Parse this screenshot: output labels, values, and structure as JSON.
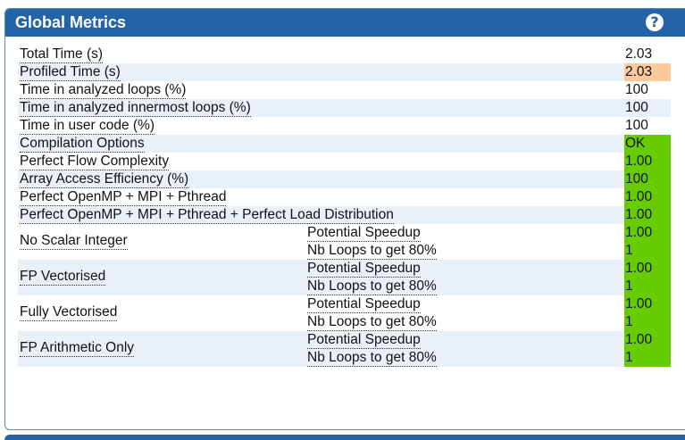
{
  "panel": {
    "title": "Global Metrics",
    "help_glyph": "?"
  },
  "colors": {
    "header": "#2364a8",
    "ok_green": "#66cc00",
    "warn_orange": "#fbc99c",
    "shade": "#e9f0f8"
  },
  "metrics": [
    {
      "label": "Total Time (s)",
      "value": "2.03"
    },
    {
      "label": "Profiled Time (s)",
      "value": "2.03"
    },
    {
      "label": "Time in analyzed loops (%)",
      "value": "100"
    },
    {
      "label": "Time in analyzed innermost loops (%)",
      "value": "100"
    },
    {
      "label": "Time in user code (%)",
      "value": "100"
    },
    {
      "label": "Compilation Options",
      "value": "OK"
    },
    {
      "label": "Perfect Flow Complexity",
      "value": "1.00"
    },
    {
      "label": "Array Access Efficiency (%)",
      "value": "100"
    },
    {
      "label": "Perfect OpenMP + MPI + Pthread",
      "value": "1.00"
    },
    {
      "label": "Perfect OpenMP + MPI + Pthread + Perfect Load Distribution",
      "value": "1.00"
    }
  ],
  "grouped": [
    {
      "label": "No Scalar Integer",
      "speedup_label": "Potential Speedup",
      "speedup": "1.00",
      "loops_label": "Nb Loops to get 80%",
      "loops": "1"
    },
    {
      "label": "FP Vectorised",
      "speedup_label": "Potential Speedup",
      "speedup": "1.00",
      "loops_label": "Nb Loops to get 80%",
      "loops": "1"
    },
    {
      "label": "Fully Vectorised",
      "speedup_label": "Potential Speedup",
      "speedup": "1.00",
      "loops_label": "Nb Loops to get 80%",
      "loops": "1"
    },
    {
      "label": "FP Arithmetic Only",
      "speedup_label": "Potential Speedup",
      "speedup": "1.00",
      "loops_label": "Nb Loops to get 80%",
      "loops": "1"
    }
  ]
}
